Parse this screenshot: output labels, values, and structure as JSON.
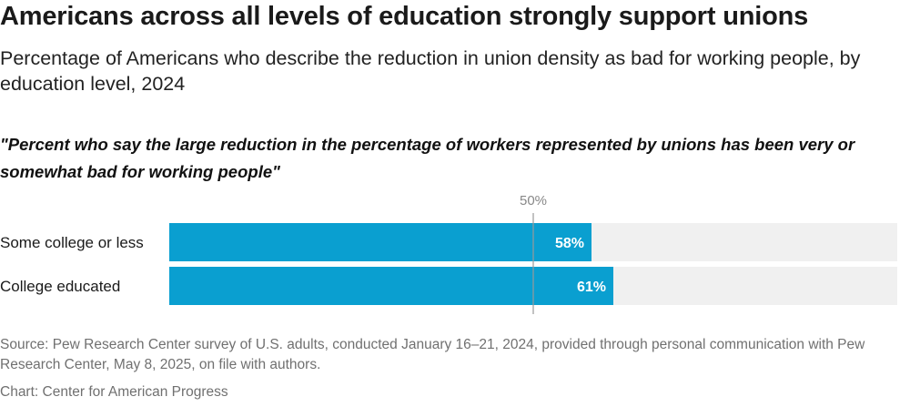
{
  "title": "Americans across all levels of education strongly support unions",
  "subtitle": "Percentage of Americans who describe the reduction in union density as bad for working people, by education level, 2024",
  "question": "\"Percent who say the large reduction in the percentage of workers represented by unions has been very or somewhat bad for working people\"",
  "chart_data": {
    "type": "bar",
    "orientation": "horizontal",
    "categories": [
      "Some college or less",
      "College educated"
    ],
    "values": [
      58,
      61
    ],
    "value_labels": [
      "58%",
      "61%"
    ],
    "xlim": [
      0,
      100
    ],
    "reference_line": {
      "value": 50,
      "label": "50%"
    },
    "colors": {
      "bar": "#0a9fd0",
      "track": "#f0f0f0",
      "reference": "#999999",
      "value_text": "#ffffff"
    },
    "grid": false,
    "legend": "none"
  },
  "footer": {
    "source": "Source: Pew Research Center survey of U.S. adults, conducted January 16–21, 2024, provided through personal communication with Pew Research Center, May 8, 2025, on file with authors.",
    "credit": "Chart: Center for American Progress"
  }
}
